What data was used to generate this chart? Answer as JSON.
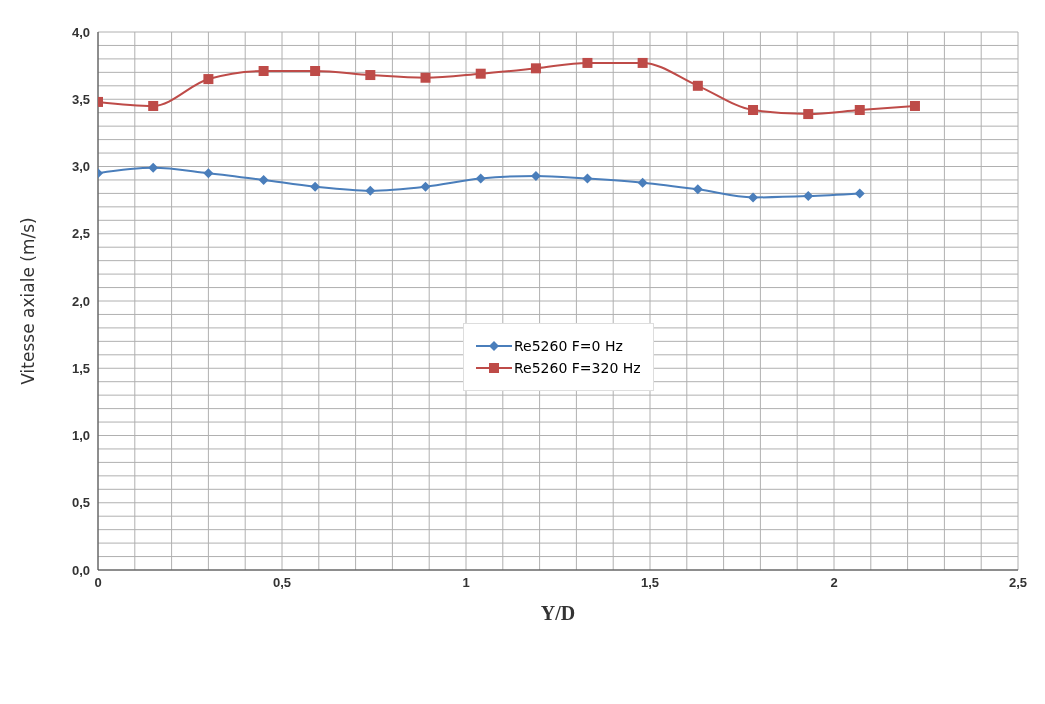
{
  "chart_data": {
    "type": "line",
    "xlabel": "Y/D",
    "ylabel": "Vitesse axiale (m/s)",
    "xlim": [
      0,
      2.5
    ],
    "xticks": [
      0,
      {
        "value": 0.1,
        "label": null
      },
      {
        "value": 0.2,
        "label": null
      },
      {
        "value": 0.3,
        "label": null
      },
      {
        "value": 0.4,
        "label": null
      },
      {
        "value": 0.5,
        "label": "0,5"
      },
      {
        "value": 0.6,
        "label": null
      },
      {
        "value": 0.7,
        "label": null
      },
      {
        "value": 0.8,
        "label": null
      },
      {
        "value": 0.9,
        "label": null
      },
      1,
      {
        "value": 1.1,
        "label": null
      },
      {
        "value": 1.2,
        "label": null
      },
      {
        "value": 1.3,
        "label": null
      },
      {
        "value": 1.4,
        "label": null
      },
      {
        "value": 1.5,
        "label": "1,5"
      },
      {
        "value": 1.6,
        "label": null
      },
      {
        "value": 1.7,
        "label": null
      },
      {
        "value": 1.8,
        "label": null
      },
      {
        "value": 1.9,
        "label": null
      },
      2,
      {
        "value": 2.1,
        "label": null
      },
      {
        "value": 2.2,
        "label": null
      },
      {
        "value": 2.3,
        "label": null
      },
      {
        "value": 2.4,
        "label": null
      },
      {
        "value": 2.5,
        "label": "2,5"
      }
    ],
    "ylim": [
      0,
      4
    ],
    "yticks": [
      {
        "value": 0,
        "label": "0,0"
      },
      {
        "value": 0.1,
        "label": null
      },
      {
        "value": 0.2,
        "label": null
      },
      {
        "value": 0.3,
        "label": null
      },
      {
        "value": 0.4,
        "label": null
      },
      {
        "value": 0.5,
        "label": "0,5"
      },
      {
        "value": 0.6,
        "label": null
      },
      {
        "value": 0.7,
        "label": null
      },
      {
        "value": 0.8,
        "label": null
      },
      {
        "value": 0.9,
        "label": null
      },
      {
        "value": 1,
        "label": "1,0"
      },
      {
        "value": 1.1,
        "label": null
      },
      {
        "value": 1.2,
        "label": null
      },
      {
        "value": 1.3,
        "label": null
      },
      {
        "value": 1.4,
        "label": null
      },
      {
        "value": 1.5,
        "label": "1,5"
      },
      {
        "value": 1.6,
        "label": null
      },
      {
        "value": 1.7,
        "label": null
      },
      {
        "value": 1.8,
        "label": null
      },
      {
        "value": 1.9,
        "label": null
      },
      {
        "value": 2,
        "label": "2,0"
      },
      {
        "value": 2.1,
        "label": null
      },
      {
        "value": 2.2,
        "label": null
      },
      {
        "value": 2.3,
        "label": null
      },
      {
        "value": 2.4,
        "label": null
      },
      {
        "value": 2.5,
        "label": "2,5"
      },
      {
        "value": 2.6,
        "label": null
      },
      {
        "value": 2.7,
        "label": null
      },
      {
        "value": 2.8,
        "label": null
      },
      {
        "value": 2.9,
        "label": null
      },
      {
        "value": 3,
        "label": "3,0"
      },
      {
        "value": 3.1,
        "label": null
      },
      {
        "value": 3.2,
        "label": null
      },
      {
        "value": 3.3,
        "label": null
      },
      {
        "value": 3.4,
        "label": null
      },
      {
        "value": 3.5,
        "label": "3,5"
      },
      {
        "value": 3.6,
        "label": null
      },
      {
        "value": 3.7,
        "label": null
      },
      {
        "value": 3.8,
        "label": null
      },
      {
        "value": 3.9,
        "label": null
      },
      {
        "value": 4,
        "label": "4,0"
      }
    ],
    "grid": true,
    "legend": "center",
    "line_style": "solid",
    "series": [
      {
        "name": "Re5260 F=0 Hz",
        "color": "#4a7ebb",
        "marker": "diamond",
        "x": [
          0,
          0.15,
          0.3,
          0.45,
          0.59,
          0.74,
          0.89,
          1.04,
          1.19,
          1.33,
          1.48,
          1.63,
          1.78,
          1.93,
          2.07
        ],
        "values": [
          2.95,
          2.99,
          2.95,
          2.9,
          2.85,
          2.82,
          2.85,
          2.91,
          2.93,
          2.91,
          2.88,
          2.83,
          2.77,
          2.78,
          2.8
        ]
      },
      {
        "name": "Re5260 F=320 Hz",
        "color": "#be4b48",
        "marker": "square",
        "x": [
          0,
          0.15,
          0.3,
          0.45,
          0.59,
          0.74,
          0.89,
          1.04,
          1.19,
          1.33,
          1.48,
          1.63,
          1.78,
          1.93,
          2.07,
          2.22
        ],
        "values": [
          3.48,
          3.45,
          3.65,
          3.71,
          3.71,
          3.68,
          3.66,
          3.69,
          3.73,
          3.77,
          3.77,
          3.6,
          3.42,
          3.39,
          3.42,
          3.45
        ]
      }
    ]
  }
}
